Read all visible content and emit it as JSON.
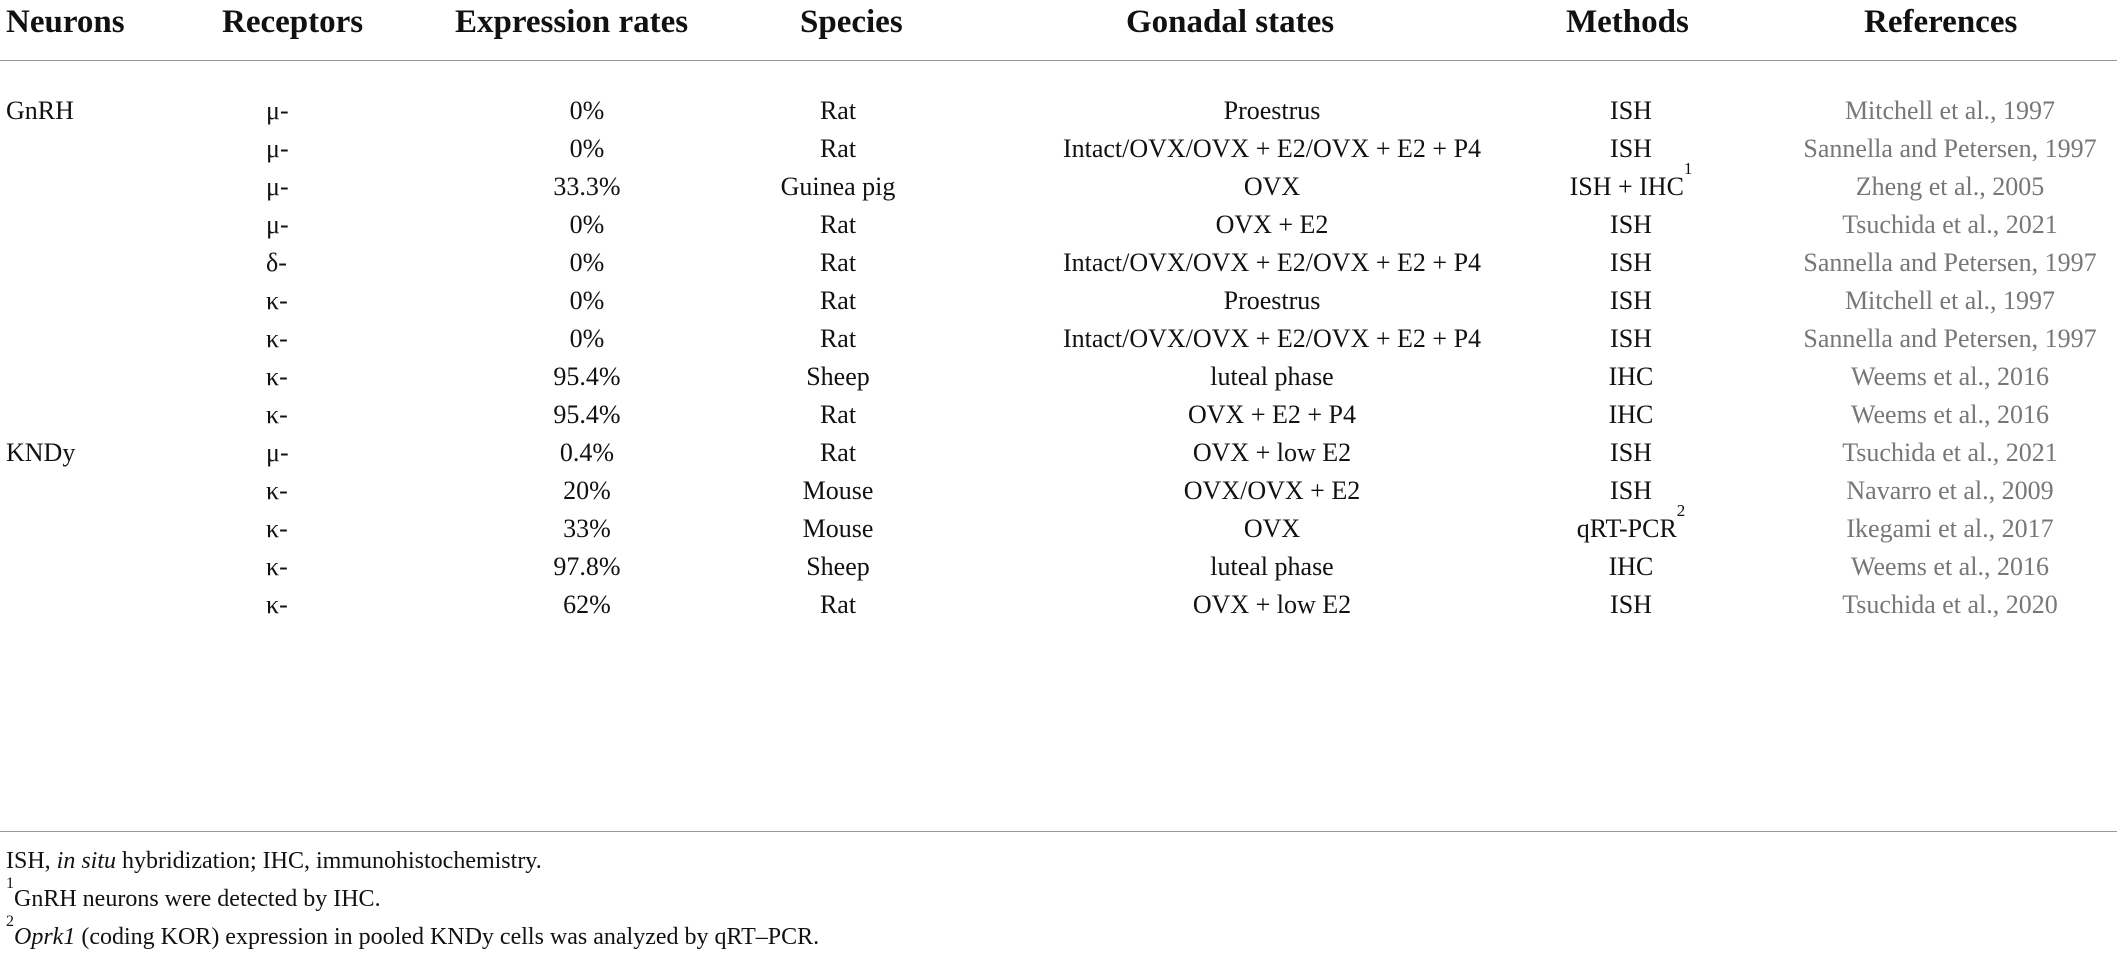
{
  "headers": {
    "neurons": "Neurons",
    "receptors": "Receptors",
    "expression_rates": "Expression rates",
    "species": "Species",
    "gonadal_states": "Gonadal states",
    "methods": "Methods",
    "references": "References"
  },
  "rows": [
    {
      "neuron": "GnRH",
      "receptor": "μ-",
      "rate": "0%",
      "species": "Rat",
      "state": "Proestrus",
      "method": "ISH",
      "method_sup": "",
      "reference": "Mitchell et al., 1997"
    },
    {
      "neuron": "",
      "receptor": "μ-",
      "rate": "0%",
      "species": "Rat",
      "state": "Intact/OVX/OVX + E2/OVX + E2 + P4",
      "method": "ISH",
      "method_sup": "",
      "reference": "Sannella and Petersen, 1997"
    },
    {
      "neuron": "",
      "receptor": "μ-",
      "rate": "33.3%",
      "species": "Guinea pig",
      "state": "OVX",
      "method": "ISH + IHC",
      "method_sup": "1",
      "reference": "Zheng et al., 2005"
    },
    {
      "neuron": "",
      "receptor": "μ-",
      "rate": "0%",
      "species": "Rat",
      "state": "OVX + E2",
      "method": "ISH",
      "method_sup": "",
      "reference": "Tsuchida et al., 2021"
    },
    {
      "neuron": "",
      "receptor": "δ-",
      "rate": "0%",
      "species": "Rat",
      "state": "Intact/OVX/OVX + E2/OVX + E2 + P4",
      "method": "ISH",
      "method_sup": "",
      "reference": "Sannella and Petersen, 1997"
    },
    {
      "neuron": "",
      "receptor": "κ-",
      "rate": "0%",
      "species": "Rat",
      "state": "Proestrus",
      "method": "ISH",
      "method_sup": "",
      "reference": "Mitchell et al., 1997"
    },
    {
      "neuron": "",
      "receptor": "κ-",
      "rate": "0%",
      "species": "Rat",
      "state": "Intact/OVX/OVX + E2/OVX + E2 + P4",
      "method": "ISH",
      "method_sup": "",
      "reference": "Sannella and Petersen, 1997"
    },
    {
      "neuron": "",
      "receptor": "κ-",
      "rate": "95.4%",
      "species": "Sheep",
      "state": "luteal phase",
      "method": "IHC",
      "method_sup": "",
      "reference": "Weems et al., 2016"
    },
    {
      "neuron": "",
      "receptor": "κ-",
      "rate": "95.4%",
      "species": "Rat",
      "state": "OVX + E2 + P4",
      "method": "IHC",
      "method_sup": "",
      "reference": "Weems et al., 2016"
    },
    {
      "neuron": "KNDy",
      "receptor": "μ-",
      "rate": "0.4%",
      "species": "Rat",
      "state": "OVX + low E2",
      "method": "ISH",
      "method_sup": "",
      "reference": "Tsuchida et al., 2021"
    },
    {
      "neuron": "",
      "receptor": "κ-",
      "rate": "20%",
      "species": "Mouse",
      "state": "OVX/OVX + E2",
      "method": "ISH",
      "method_sup": "",
      "reference": "Navarro et al., 2009"
    },
    {
      "neuron": "",
      "receptor": "κ-",
      "rate": "33%",
      "species": "Mouse",
      "state": "OVX",
      "method": "qRT-PCR",
      "method_sup": "2",
      "reference": "Ikegami et al., 2017"
    },
    {
      "neuron": "",
      "receptor": "κ-",
      "rate": "97.8%",
      "species": "Sheep",
      "state": "luteal phase",
      "method": "IHC",
      "method_sup": "",
      "reference": "Weems et al., 2016"
    },
    {
      "neuron": "",
      "receptor": "κ-",
      "rate": "62%",
      "species": "Rat",
      "state": "OVX + low E2",
      "method": "ISH",
      "method_sup": "",
      "reference": "Tsuchida et al., 2020"
    }
  ],
  "footnotes": {
    "abbrev_a": "ISH, ",
    "abbrev_italic": "in situ",
    "abbrev_b": " hybridization; IHC, immunohistochemistry.",
    "note1_mark": "1",
    "note1_text": "GnRH neurons were detected by IHC.",
    "note2_mark": "2",
    "note2_italic": "Oprk1",
    "note2_text": " (coding KOR) expression in pooled KNDy cells was analyzed by qRT–PCR."
  }
}
